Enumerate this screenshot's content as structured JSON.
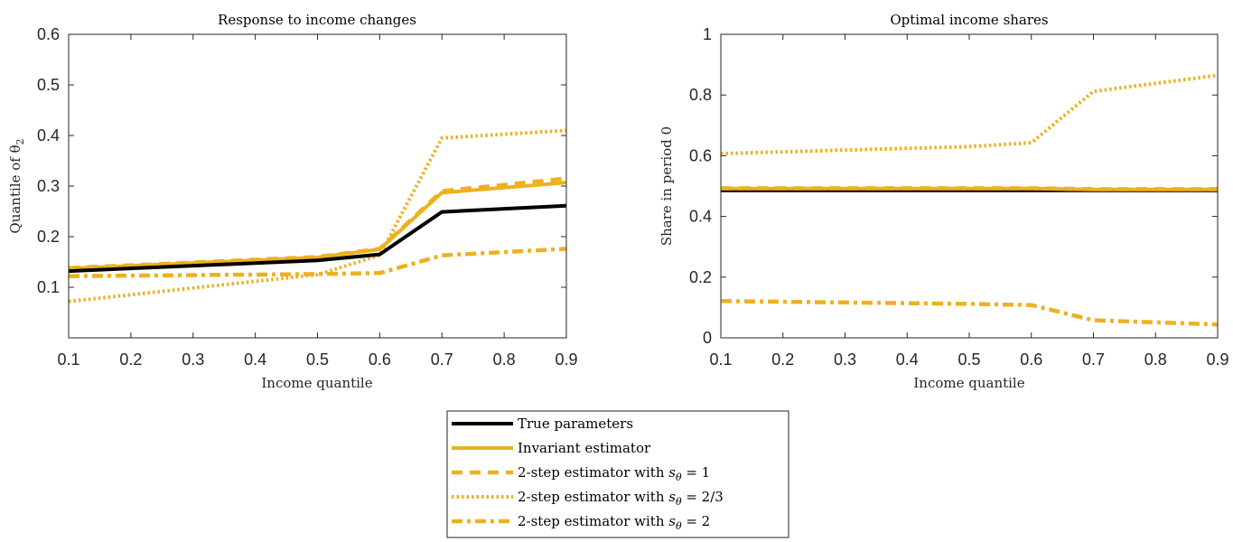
{
  "chart_data": [
    {
      "type": "line",
      "title": "Response to income changes",
      "xlabel": "Income quantile",
      "ylabel": "Quantile of θ",
      "ylabel_subscript": "2",
      "xlim": [
        0.1,
        0.9
      ],
      "ylim": [
        0,
        0.6
      ],
      "xticks": [
        0.1,
        0.2,
        0.3,
        0.4,
        0.5,
        0.6,
        0.7,
        0.8,
        0.9
      ],
      "xtick_labels": [
        "0.1",
        "0.2",
        "0.3",
        "0.4",
        "0.5",
        "0.6",
        "0.7",
        "0.8",
        "0.9"
      ],
      "yticks": [
        0.1,
        0.2,
        0.3,
        0.4,
        0.5,
        0.6
      ],
      "ytick_labels": [
        "0.1",
        "0.2",
        "0.3",
        "0.4",
        "0.5",
        "0.6"
      ],
      "grid": false,
      "x": [
        0.1,
        0.5,
        0.6,
        0.7,
        0.9
      ],
      "series": [
        {
          "name": "2-step estimator with s_θ = 2",
          "values": [
            0.122,
            0.126,
            0.128,
            0.163,
            0.176
          ]
        },
        {
          "name": "2-step estimator with s_θ = 2/3",
          "values": [
            0.072,
            0.125,
            0.163,
            0.395,
            0.41
          ]
        },
        {
          "name": "2-step estimator with s_θ = 1",
          "values": [
            0.138,
            0.16,
            0.176,
            0.29,
            0.315
          ]
        },
        {
          "name": "Invariant estimator",
          "values": [
            0.137,
            0.159,
            0.175,
            0.287,
            0.307
          ]
        },
        {
          "name": "True parameters",
          "values": [
            0.132,
            0.153,
            0.165,
            0.249,
            0.261
          ]
        }
      ]
    },
    {
      "type": "line",
      "title": "Optimal income shares",
      "xlabel": "Income quantile",
      "ylabel": "Share in period 0",
      "xlim": [
        0.1,
        0.9
      ],
      "ylim": [
        0,
        1
      ],
      "xticks": [
        0.1,
        0.2,
        0.3,
        0.4,
        0.5,
        0.6,
        0.7,
        0.8,
        0.9
      ],
      "xtick_labels": [
        "0.1",
        "0.2",
        "0.3",
        "0.4",
        "0.5",
        "0.6",
        "0.7",
        "0.8",
        "0.9"
      ],
      "yticks": [
        0,
        0.2,
        0.4,
        0.6,
        0.8,
        1
      ],
      "ytick_labels": [
        "0",
        "0.2",
        "0.4",
        "0.6",
        "0.8",
        "1"
      ],
      "grid": false,
      "x": [
        0.1,
        0.5,
        0.6,
        0.7,
        0.9
      ],
      "series": [
        {
          "name": "2-step estimator with s_θ = 2",
          "values": [
            0.121,
            0.112,
            0.108,
            0.058,
            0.044
          ]
        },
        {
          "name": "2-step estimator with s_θ = 2/3",
          "values": [
            0.607,
            0.63,
            0.643,
            0.812,
            0.865
          ]
        },
        {
          "name": "True parameters",
          "values": [
            0.486,
            0.486,
            0.486,
            0.486,
            0.486
          ]
        },
        {
          "name": "2-step estimator with s_θ = 1",
          "values": [
            0.493,
            0.493,
            0.493,
            0.49,
            0.49
          ]
        },
        {
          "name": "Invariant estimator",
          "values": [
            0.492,
            0.492,
            0.492,
            0.489,
            0.489
          ]
        }
      ]
    }
  ],
  "legend": {
    "placement": "bottom-center",
    "entries": [
      {
        "label": "True parameters",
        "style": "solid",
        "color": "#000000",
        "key": "true"
      },
      {
        "label": "Invariant estimator",
        "style": "solid",
        "color": "#EDB120",
        "key": "inv"
      },
      {
        "label": "2-step estimator with s_θ = 1",
        "prefix": "2-step estimator with ",
        "var": "s",
        "sub": "θ",
        "suffix": " = 1",
        "style": "dashed",
        "color": "#EDB120",
        "key": "s1"
      },
      {
        "label": "2-step estimator with s_θ = 2/3",
        "prefix": "2-step estimator with ",
        "var": "s",
        "sub": "θ",
        "suffix": " = 2/3",
        "style": "dotted",
        "color": "#EDB120",
        "key": "s23"
      },
      {
        "label": "2-step estimator with s_θ = 2",
        "prefix": "2-step estimator with ",
        "var": "s",
        "sub": "θ",
        "suffix": " = 2",
        "style": "dashdot",
        "color": "#EDB120",
        "key": "s2"
      }
    ]
  },
  "colors": {
    "true": "#000000",
    "estimator": "#EDB120",
    "axis": "#262626"
  }
}
